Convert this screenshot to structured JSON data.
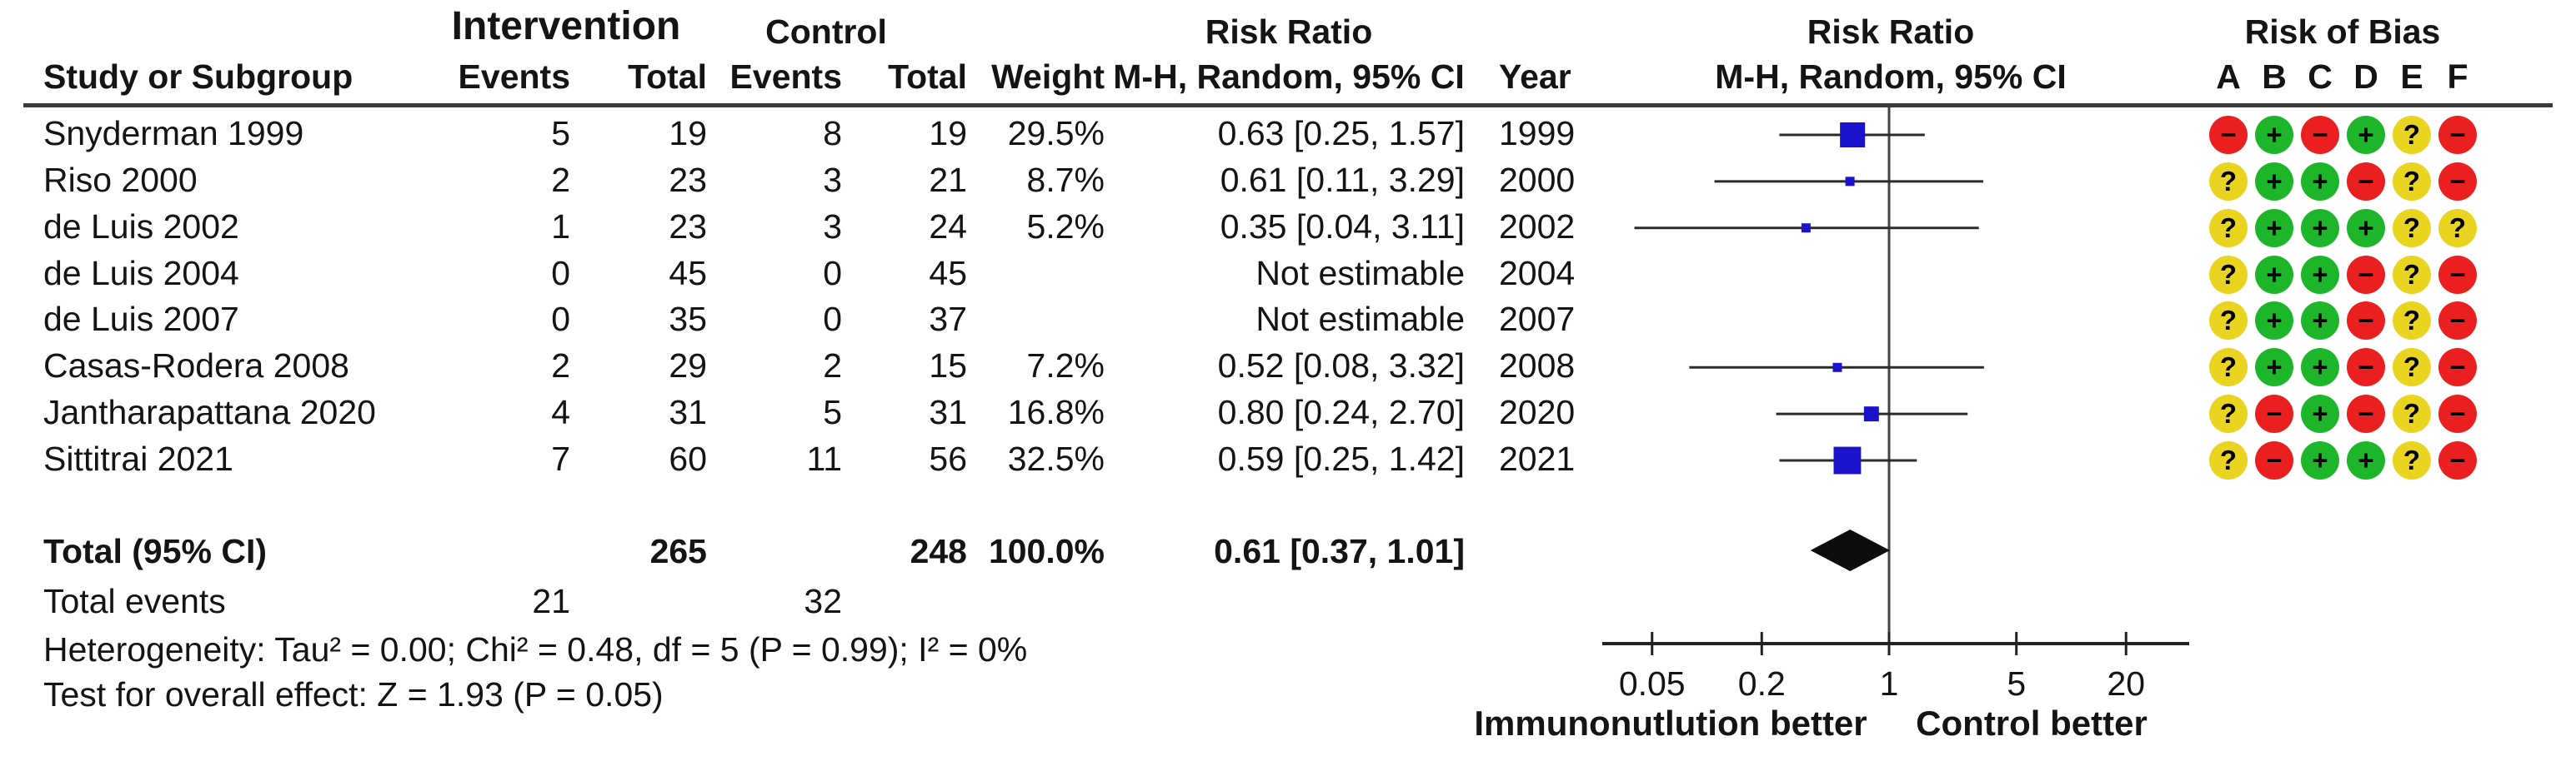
{
  "headers": {
    "intervention": "Intervention",
    "control": "Control",
    "risk_ratio_text": "Risk Ratio",
    "risk_ratio_plot": "Risk Ratio",
    "risk_of_bias": "Risk of Bias"
  },
  "column_headers": {
    "study": "Study or Subgroup",
    "int_events": "Events",
    "int_total": "Total",
    "ctrl_events": "Events",
    "ctrl_total": "Total",
    "weight": "Weight",
    "mh_ci_text": "M-H, Random, 95% CI",
    "year": "Year",
    "mh_ci_plot": "M-H, Random, 95% CI",
    "rob_letters": [
      "A",
      "B",
      "C",
      "D",
      "E",
      "F"
    ]
  },
  "chart_data": {
    "type": "forest",
    "effect_measure": "Risk Ratio",
    "method": "M-H, Random, 95% CI",
    "x_scale": "log",
    "axis_ticks": [
      0.05,
      0.2,
      1,
      5,
      20
    ],
    "axis_range": [
      0.026,
      42
    ],
    "axis_labels": {
      "left": "Immunonutlution better",
      "right": "Control better"
    },
    "marker_color": "#1c12cc",
    "line_color": "#2b2b2b",
    "diamond_color": "#0d0d0d",
    "rob_colors": {
      "plus": "#1db62a",
      "question": "#e9d41f",
      "minus": "#ea2020"
    },
    "studies": [
      {
        "name": "Snyderman 1999",
        "int_events": "5",
        "int_total": "19",
        "ctrl_events": "8",
        "ctrl_total": "19",
        "weight": "29.5%",
        "rr_text": "0.63 [0.25, 1.57]",
        "year": "1999",
        "rr": 0.63,
        "ci_low": 0.25,
        "ci_high": 1.57,
        "weight_pct": 29.5,
        "estimable": true,
        "risk_of_bias": [
          "-",
          "+",
          "-",
          "+",
          "?",
          "-"
        ]
      },
      {
        "name": "Riso 2000",
        "int_events": "2",
        "int_total": "23",
        "ctrl_events": "3",
        "ctrl_total": "21",
        "weight": "8.7%",
        "rr_text": "0.61 [0.11, 3.29]",
        "year": "2000",
        "rr": 0.61,
        "ci_low": 0.11,
        "ci_high": 3.29,
        "weight_pct": 8.7,
        "estimable": true,
        "risk_of_bias": [
          "?",
          "+",
          "+",
          "-",
          "?",
          "-"
        ]
      },
      {
        "name": "de Luis 2002",
        "int_events": "1",
        "int_total": "23",
        "ctrl_events": "3",
        "ctrl_total": "24",
        "weight": "5.2%",
        "rr_text": "0.35 [0.04, 3.11]",
        "year": "2002",
        "rr": 0.35,
        "ci_low": 0.04,
        "ci_high": 3.11,
        "weight_pct": 5.2,
        "estimable": true,
        "risk_of_bias": [
          "?",
          "+",
          "+",
          "+",
          "?",
          "?"
        ]
      },
      {
        "name": "de Luis 2004",
        "int_events": "0",
        "int_total": "45",
        "ctrl_events": "0",
        "ctrl_total": "45",
        "weight": "",
        "rr_text": "Not estimable",
        "year": "2004",
        "rr": null,
        "ci_low": null,
        "ci_high": null,
        "weight_pct": 0,
        "estimable": false,
        "risk_of_bias": [
          "?",
          "+",
          "+",
          "-",
          "?",
          "-"
        ]
      },
      {
        "name": "de Luis 2007",
        "int_events": "0",
        "int_total": "35",
        "ctrl_events": "0",
        "ctrl_total": "37",
        "weight": "",
        "rr_text": "Not estimable",
        "year": "2007",
        "rr": null,
        "ci_low": null,
        "ci_high": null,
        "weight_pct": 0,
        "estimable": false,
        "risk_of_bias": [
          "?",
          "+",
          "+",
          "-",
          "?",
          "-"
        ]
      },
      {
        "name": "Casas-Rodera 2008",
        "int_events": "2",
        "int_total": "29",
        "ctrl_events": "2",
        "ctrl_total": "15",
        "weight": "7.2%",
        "rr_text": "0.52 [0.08, 3.32]",
        "year": "2008",
        "rr": 0.52,
        "ci_low": 0.08,
        "ci_high": 3.32,
        "weight_pct": 7.2,
        "estimable": true,
        "risk_of_bias": [
          "?",
          "+",
          "+",
          "-",
          "?",
          "-"
        ]
      },
      {
        "name": "Jantharapattana 2020",
        "int_events": "4",
        "int_total": "31",
        "ctrl_events": "5",
        "ctrl_total": "31",
        "weight": "16.8%",
        "rr_text": "0.80 [0.24, 2.70]",
        "year": "2020",
        "rr": 0.8,
        "ci_low": 0.24,
        "ci_high": 2.7,
        "weight_pct": 16.8,
        "estimable": true,
        "risk_of_bias": [
          "?",
          "-",
          "+",
          "-",
          "?",
          "-"
        ]
      },
      {
        "name": "Sittitrai 2021",
        "int_events": "7",
        "int_total": "60",
        "ctrl_events": "11",
        "ctrl_total": "56",
        "weight": "32.5%",
        "rr_text": "0.59 [0.25, 1.42]",
        "year": "2021",
        "rr": 0.59,
        "ci_low": 0.25,
        "ci_high": 1.42,
        "weight_pct": 32.5,
        "estimable": true,
        "risk_of_bias": [
          "?",
          "-",
          "+",
          "+",
          "?",
          "-"
        ]
      }
    ],
    "total": {
      "label": "Total (95% CI)",
      "int_total": "265",
      "ctrl_total": "248",
      "weight": "100.0%",
      "rr_text": "0.61 [0.37, 1.01]",
      "rr": 0.61,
      "ci_low": 0.37,
      "ci_high": 1.01
    },
    "total_events": {
      "label": "Total events",
      "intervention": "21",
      "control": "32"
    },
    "heterogeneity": "Heterogeneity: Tau² = 0.00; Chi² = 0.48, df = 5 (P = 0.99); I² = 0%",
    "overall_effect": "Test for overall effect: Z = 1.93 (P = 0.05)"
  }
}
